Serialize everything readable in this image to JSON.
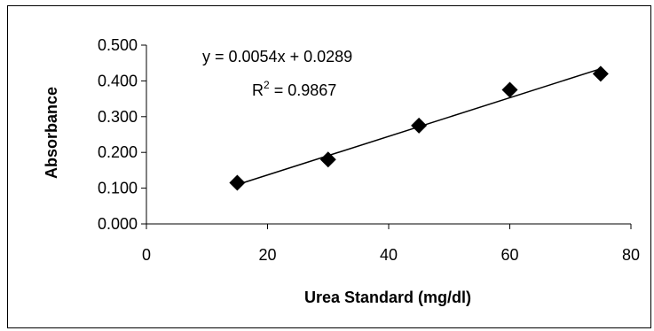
{
  "chart_data": {
    "type": "scatter",
    "title": "",
    "xlabel": "Urea Standard (mg/dl)",
    "ylabel": "Absorbance",
    "xlim": [
      0,
      80
    ],
    "ylim": [
      0,
      0.5
    ],
    "x_ticks": [
      "0",
      "20",
      "40",
      "60",
      "80"
    ],
    "y_ticks": [
      "0.000",
      "0.100",
      "0.200",
      "0.300",
      "0.400",
      "0.500"
    ],
    "x": [
      15,
      30,
      45,
      60,
      75
    ],
    "y": [
      0.115,
      0.18,
      0.275,
      0.375,
      0.42
    ],
    "grid": false,
    "marker": "diamond",
    "marker_color": "#000000",
    "trendline": {
      "slope": 0.0054,
      "intercept": 0.0289,
      "equation_label": "y = 0.0054x + 0.0289",
      "r2_prefix": "R",
      "r2_sup": "2",
      "r2_value": " = 0.9867"
    }
  }
}
